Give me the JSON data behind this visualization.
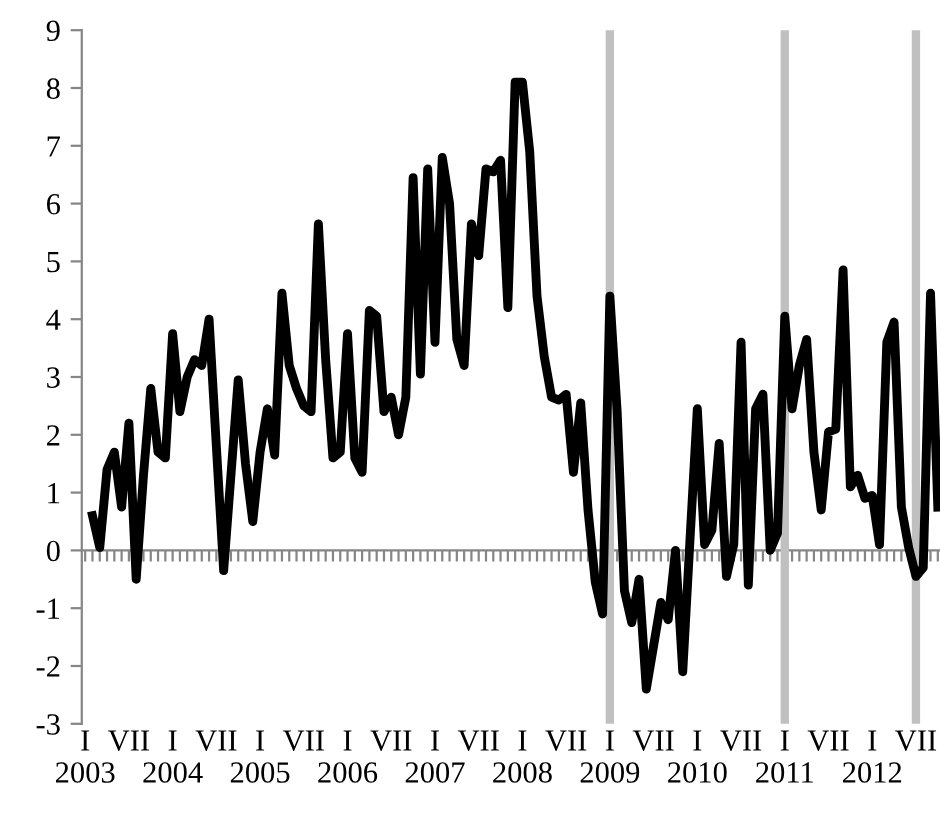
{
  "chart_data": {
    "type": "line",
    "x": [
      "2003-02",
      "2003-03",
      "2003-04",
      "2003-05",
      "2003-06",
      "2003-07",
      "2003-08",
      "2003-09",
      "2003-10",
      "2003-11",
      "2003-12",
      "2004-01",
      "2004-02",
      "2004-03",
      "2004-04",
      "2004-05",
      "2004-06",
      "2004-07",
      "2004-08",
      "2004-09",
      "2004-10",
      "2004-11",
      "2004-12",
      "2005-01",
      "2005-02",
      "2005-03",
      "2005-04",
      "2005-05",
      "2005-06",
      "2005-07",
      "2005-08",
      "2005-09",
      "2005-10",
      "2005-11",
      "2005-12",
      "2006-01",
      "2006-02",
      "2006-03",
      "2006-04",
      "2006-05",
      "2006-06",
      "2006-07",
      "2006-08",
      "2006-09",
      "2006-10",
      "2006-11",
      "2006-12",
      "2007-01",
      "2007-02",
      "2007-03",
      "2007-04",
      "2007-05",
      "2007-06",
      "2007-07",
      "2007-08",
      "2007-09",
      "2007-10",
      "2007-11",
      "2007-12",
      "2008-01",
      "2008-02",
      "2008-03",
      "2008-04",
      "2008-05",
      "2008-06",
      "2008-07",
      "2008-08",
      "2008-09",
      "2008-10",
      "2008-11",
      "2008-12",
      "2009-01",
      "2009-02",
      "2009-03",
      "2009-04",
      "2009-05",
      "2009-06",
      "2009-07",
      "2009-08",
      "2009-09",
      "2009-10",
      "2009-11",
      "2009-12",
      "2010-01",
      "2010-02",
      "2010-03",
      "2010-04",
      "2010-05",
      "2010-06",
      "2010-07",
      "2010-08",
      "2010-09",
      "2010-10",
      "2010-11",
      "2010-12",
      "2011-01",
      "2011-02",
      "2011-03",
      "2011-04",
      "2011-05",
      "2011-06",
      "2011-07",
      "2011-08",
      "2011-09",
      "2011-10",
      "2011-11",
      "2011-12",
      "2012-01",
      "2012-02",
      "2012-03",
      "2012-04",
      "2012-05",
      "2012-06",
      "2012-07",
      "2012-08",
      "2012-09",
      "2012-10"
    ],
    "series": [
      {
        "color": "#000000",
        "values": [
          0.6,
          0.05,
          1.4,
          1.7,
          0.75,
          2.2,
          -0.5,
          1.3,
          2.8,
          1.7,
          1.6,
          3.75,
          2.4,
          3.0,
          3.3,
          3.2,
          4.0,
          1.8,
          -0.35,
          1.3,
          2.95,
          1.5,
          0.5,
          1.7,
          2.45,
          1.65,
          4.45,
          3.2,
          2.8,
          2.5,
          2.4,
          5.65,
          3.3,
          1.6,
          1.7,
          3.75,
          1.6,
          1.35,
          4.15,
          4.05,
          2.4,
          2.65,
          2.0,
          2.65,
          6.45,
          3.05,
          6.6,
          3.6,
          6.8,
          6.0,
          3.65,
          3.2,
          5.65,
          5.1,
          6.6,
          6.55,
          6.75,
          4.2,
          8.1,
          8.1,
          6.9,
          4.4,
          3.35,
          2.65,
          2.6,
          2.7,
          1.35,
          2.55,
          0.7,
          -0.55,
          -1.1,
          4.4,
          2.4,
          -0.7,
          -1.25,
          -0.5,
          -2.4,
          -1.65,
          -0.9,
          -1.2,
          0.0,
          -2.1,
          0.2,
          2.45,
          0.1,
          0.35,
          1.85,
          -0.45,
          0.1,
          3.6,
          -0.6,
          2.45,
          2.7,
          0.0,
          0.3,
          4.05,
          2.45,
          3.2,
          3.65,
          1.7,
          0.7,
          2.05,
          2.1,
          4.85,
          1.1,
          1.3,
          0.9,
          0.95,
          0.1,
          3.6,
          3.95,
          0.75,
          0.05,
          -0.45,
          -0.3,
          4.45,
          0.75
        ]
      }
    ],
    "xlim": [
      "2002-12-17",
      "2012-10-10"
    ],
    "xticks": [
      {
        "value": "2003-01",
        "label": "I\n2003"
      },
      {
        "value": "2003-07",
        "label": "VII"
      },
      {
        "value": "2004-01",
        "label": "I\n2004"
      },
      {
        "value": "2004-07",
        "label": "VII"
      },
      {
        "value": "2005-01",
        "label": "I\n2005"
      },
      {
        "value": "2005-07",
        "label": "VII"
      },
      {
        "value": "2006-01",
        "label": "I\n2006"
      },
      {
        "value": "2006-07",
        "label": "VII"
      },
      {
        "value": "2007-01",
        "label": "I\n2007"
      },
      {
        "value": "2007-07",
        "label": "VII"
      },
      {
        "value": "2008-01",
        "label": "I\n2008"
      },
      {
        "value": "2008-07",
        "label": "VII"
      },
      {
        "value": "2009-01",
        "label": "I\n2009"
      },
      {
        "value": "2009-07",
        "label": "VII"
      },
      {
        "value": "2010-01",
        "label": "I\n2010"
      },
      {
        "value": "2010-07",
        "label": "VII"
      },
      {
        "value": "2011-01",
        "label": "I\n2011"
      },
      {
        "value": "2011-07",
        "label": "VII"
      },
      {
        "value": "2012-01",
        "label": "I\n2012"
      },
      {
        "value": "2012-07",
        "label": "VII"
      }
    ],
    "ylim": [
      -3,
      9
    ],
    "yticks": [
      -3,
      -2,
      -1,
      0,
      1,
      2,
      3,
      4,
      5,
      6,
      7,
      8,
      9
    ],
    "ref_lines": [
      {
        "axis": "x",
        "value": "2009-01",
        "color": "#c0c0c0"
      },
      {
        "axis": "x",
        "value": "2011-01",
        "color": "#c0c0c0"
      },
      {
        "axis": "x",
        "value": "2012-07",
        "color": "#c0c0c0"
      }
    ],
    "grid": false,
    "legend": false,
    "marker": "none",
    "line_style": "solid"
  }
}
